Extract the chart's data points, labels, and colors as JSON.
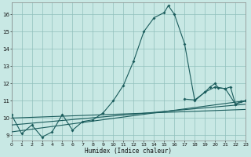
{
  "xlabel": "Humidex (Indice chaleur)",
  "bg_color": "#c8e8e4",
  "grid_color": "#90c0bc",
  "line_color": "#1a5c5c",
  "xlim": [
    0,
    23
  ],
  "ylim": [
    8.7,
    16.7
  ],
  "xticks": [
    0,
    1,
    2,
    3,
    4,
    5,
    6,
    7,
    8,
    9,
    10,
    11,
    12,
    13,
    14,
    15,
    16,
    17,
    18,
    19,
    20,
    21,
    22,
    23
  ],
  "yticks": [
    9,
    10,
    11,
    12,
    13,
    14,
    15,
    16
  ],
  "main_x": [
    0,
    1,
    2,
    3,
    4,
    5,
    6,
    7,
    8,
    9,
    10,
    11,
    12,
    13,
    14,
    15,
    15.4,
    16,
    17,
    18,
    19,
    20,
    21,
    22,
    23
  ],
  "main_y": [
    10.2,
    9.1,
    9.6,
    8.9,
    9.2,
    10.2,
    9.3,
    9.8,
    9.9,
    10.3,
    11.0,
    11.9,
    13.3,
    15.0,
    15.8,
    16.1,
    16.5,
    16.0,
    14.3,
    11.0,
    11.5,
    11.8,
    11.7,
    10.8,
    11.0
  ],
  "trend1_x": [
    0,
    23
  ],
  "trend1_y": [
    9.2,
    11.0
  ],
  "trend2_x": [
    0,
    23
  ],
  "trend2_y": [
    9.6,
    10.8
  ],
  "trend3_x": [
    0,
    23
  ],
  "trend3_y": [
    10.0,
    10.5
  ],
  "right_x": [
    17,
    18,
    19,
    19.5,
    20,
    20.3,
    21,
    21.5,
    22,
    22.5,
    23
  ],
  "right_y": [
    11.1,
    11.05,
    11.5,
    11.8,
    12.0,
    11.75,
    11.7,
    11.8,
    10.8,
    10.95,
    11.0
  ]
}
